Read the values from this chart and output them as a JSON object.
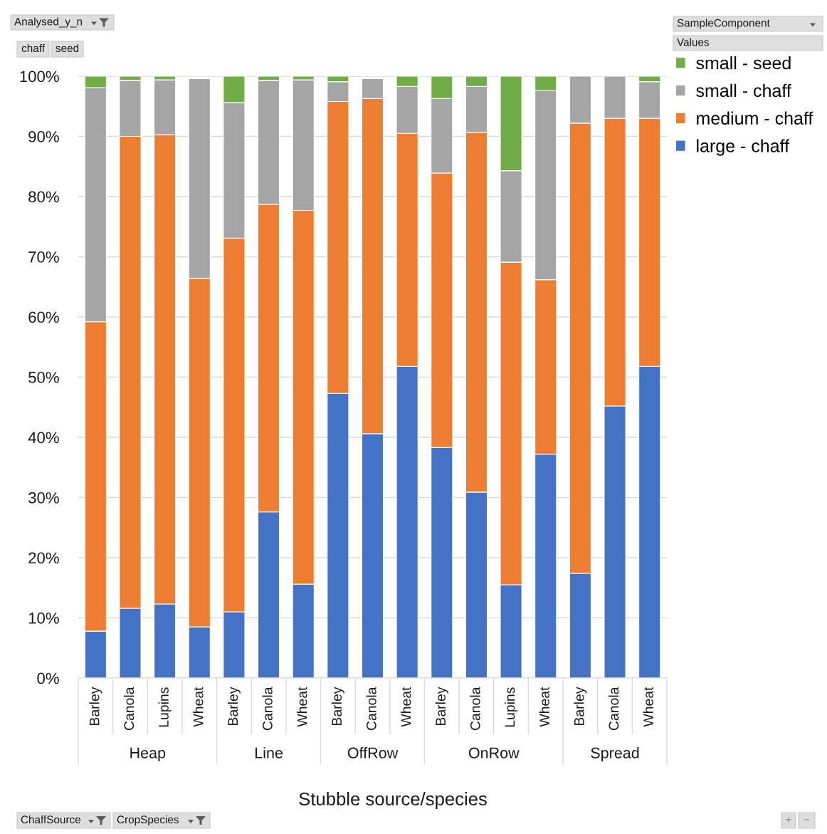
{
  "chart_data": {
    "type": "bar",
    "stacked": true,
    "categories": [
      "Barley",
      "Canola",
      "Lupins",
      "Wheat",
      "Barley",
      "Canola",
      "Wheat",
      "Barley",
      "Canola",
      "Wheat",
      "Barley",
      "Canola",
      "Lupins",
      "Wheat",
      "Barley",
      "Canola",
      "Wheat"
    ],
    "series": [
      {
        "name": "large - chaff",
        "color": "#4472c4",
        "values": [
          7.8,
          11.6,
          12.3,
          8.5,
          11.0,
          27.6,
          15.6,
          47.3,
          40.6,
          51.8,
          38.3,
          30.9,
          15.5,
          37.2,
          17.4,
          45.2,
          51.8
        ]
      },
      {
        "name": "medium - chaff",
        "color": "#ed7d31",
        "values": [
          51.4,
          78.4,
          78.0,
          57.9,
          62.1,
          51.1,
          62.1,
          48.5,
          55.7,
          38.7,
          45.6,
          59.8,
          53.6,
          29.0,
          74.8,
          47.8,
          41.2
        ]
      },
      {
        "name": "small - chaff",
        "color": "#a5a5a5",
        "values": [
          38.9,
          9.3,
          9.1,
          33.2,
          22.5,
          20.6,
          21.7,
          3.3,
          3.3,
          7.8,
          12.4,
          7.6,
          15.2,
          31.4,
          7.8,
          7.0,
          6.1
        ]
      },
      {
        "name": "small - seed",
        "color": "#70ad47",
        "values": [
          1.9,
          0.7,
          0.6,
          null,
          4.4,
          0.7,
          0.6,
          0.9,
          null,
          1.7,
          3.7,
          1.7,
          15.7,
          2.4,
          null,
          null,
          0.9
        ]
      }
    ],
    "xlabel": "Stubble source/species",
    "legend_title": "SampleComponent",
    "annotations": [
      "Heap",
      "Line",
      "OffRow",
      "OnRow",
      "Spread",
      "Analysed_y_n",
      "chaff",
      "seed",
      "Values",
      "ChaffSource",
      "CropSpecies",
      "+",
      "−"
    ],
    "ylim": [
      0,
      100
    ],
    "yticks": [
      {
        "value": 0,
        "label": "0%"
      },
      {
        "value": 10,
        "label": "10%"
      },
      {
        "value": 20,
        "label": "20%"
      },
      {
        "value": 30,
        "label": "30%"
      },
      {
        "value": 40,
        "label": "40%"
      },
      {
        "value": 50,
        "label": "50%"
      },
      {
        "value": 60,
        "label": "60%"
      },
      {
        "value": 70,
        "label": "70%"
      },
      {
        "value": 80,
        "label": "80%"
      },
      {
        "value": 90,
        "label": "90%"
      },
      {
        "value": 100,
        "label": "100%"
      }
    ],
    "grid": "y",
    "legend": "right"
  }
}
